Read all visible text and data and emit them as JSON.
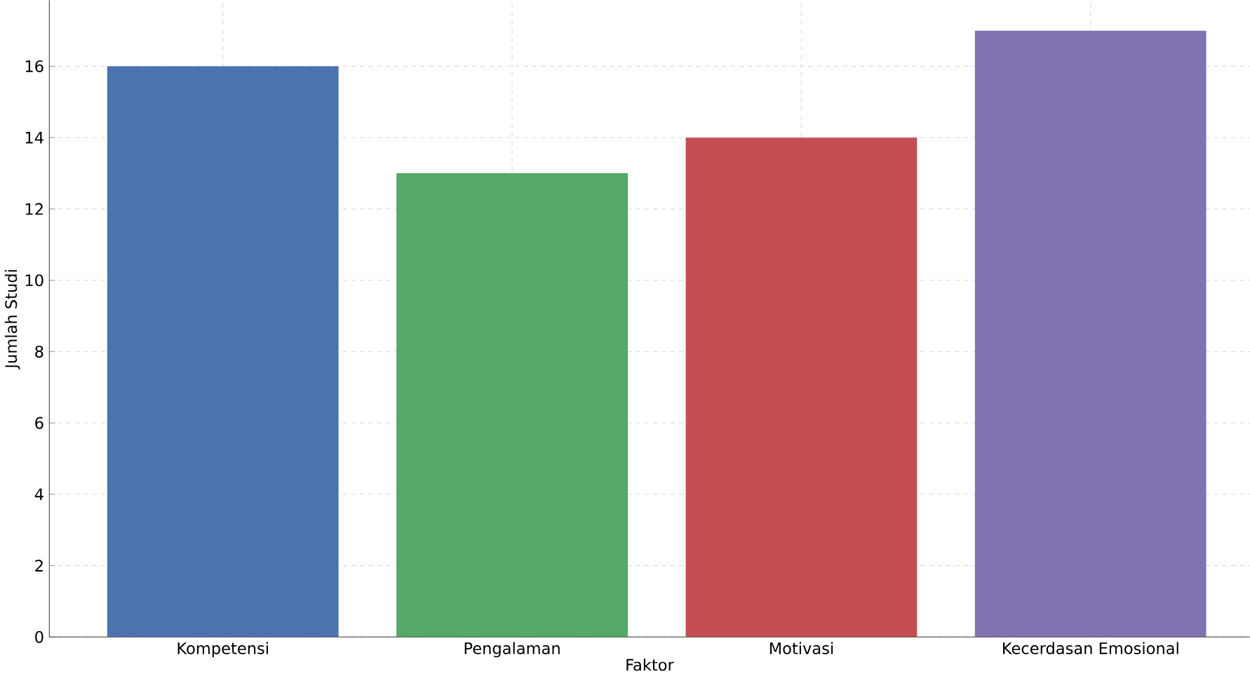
{
  "chart_data": {
    "type": "bar",
    "xlabel": "Faktor",
    "ylabel": "Jumlah Studi",
    "categories": [
      "Kompetensi",
      "Pengalaman",
      "Motivasi",
      "Kecerdasan Emosional"
    ],
    "values": [
      16,
      13,
      14,
      17
    ],
    "colors": [
      "#4c72b0",
      "#55a868",
      "#c44e52",
      "#8172b2"
    ],
    "ylim": [
      0,
      17.85
    ],
    "yticks": [
      0,
      2,
      4,
      6,
      8,
      10,
      12,
      14,
      16
    ],
    "grid": true
  }
}
